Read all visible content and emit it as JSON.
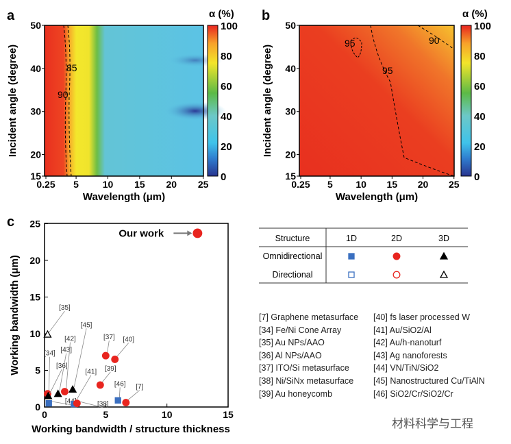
{
  "chart_data": [
    {
      "panel": "a",
      "type": "heatmap",
      "xlabel": "Wavelength (μm)",
      "ylabel": "Incident angle (degree)",
      "xticks": [
        "0.25",
        "5",
        "10",
        "15",
        "20",
        "25"
      ],
      "yticks": [
        "15",
        "20",
        "30",
        "40",
        "50"
      ],
      "xlim": [
        0.25,
        25
      ],
      "ylim": [
        15,
        50
      ],
      "colorbar": {
        "label": "α (%)",
        "ticks": [
          "0",
          "20",
          "40",
          "60",
          "80",
          "100"
        ],
        "range": [
          0,
          100
        ]
      },
      "contours": [
        "85",
        "90"
      ]
    },
    {
      "panel": "b",
      "type": "heatmap",
      "xlabel": "Wavelength (μm)",
      "ylabel": "Incident angle (degree)",
      "xticks": [
        "0.25",
        "5",
        "10",
        "15",
        "20",
        "25"
      ],
      "yticks": [
        "15",
        "20",
        "30",
        "40",
        "50"
      ],
      "xlim": [
        0.25,
        25
      ],
      "ylim": [
        15,
        50
      ],
      "colorbar": {
        "label": "α (%)",
        "ticks": [
          "0",
          "20",
          "40",
          "60",
          "80",
          "100"
        ],
        "range": [
          0,
          100
        ]
      },
      "contours": [
        "95",
        "95",
        "90"
      ]
    },
    {
      "panel": "c",
      "type": "scatter",
      "xlabel": "Working bandwidth / structure thickness",
      "ylabel": "Working bandwidth (μm)",
      "xlim": [
        0,
        15
      ],
      "ylim": [
        0,
        25
      ],
      "xticks": [
        "0",
        "5",
        "10",
        "15"
      ],
      "yticks": [
        "0",
        "5",
        "10",
        "15",
        "20",
        "25"
      ],
      "points": [
        {
          "label": "[35]",
          "x": 0.25,
          "y": 9.9,
          "dim": "3D",
          "mode": "Directional"
        },
        {
          "label": "[34]",
          "x": 0.25,
          "y": 1.8,
          "dim": "2D",
          "mode": "Omnidirectional"
        },
        {
          "label": "[36]",
          "x": 0.3,
          "y": 1.5,
          "dim": "3D",
          "mode": "Omnidirectional"
        },
        {
          "label": "[43]",
          "x": 1.1,
          "y": 1.8,
          "dim": "3D",
          "mode": "Omnidirectional"
        },
        {
          "label": "[42]",
          "x": 1.65,
          "y": 2.1,
          "dim": "2D",
          "mode": "Omnidirectional"
        },
        {
          "label": "[45]",
          "x": 2.3,
          "y": 2.4,
          "dim": "3D",
          "mode": "Omnidirectional"
        },
        {
          "label": "[44]",
          "x": 0.35,
          "y": 0.5,
          "dim": "1D",
          "mode": "Omnidirectional"
        },
        {
          "label": "[41]",
          "x": 2.4,
          "y": 0.4,
          "dim": "1D",
          "mode": "Omnidirectional"
        },
        {
          "label": "[38]",
          "x": 2.65,
          "y": 0.5,
          "dim": "2D",
          "mode": "Omnidirectional"
        },
        {
          "label": "[39]",
          "x": 4.55,
          "y": 3.0,
          "dim": "2D",
          "mode": "Omnidirectional"
        },
        {
          "label": "[37]",
          "x": 5.0,
          "y": 7.0,
          "dim": "2D",
          "mode": "Omnidirectional"
        },
        {
          "label": "[40]",
          "x": 5.75,
          "y": 6.5,
          "dim": "2D",
          "mode": "Omnidirectional"
        },
        {
          "label": "[46]",
          "x": 6.0,
          "y": 0.9,
          "dim": "1D",
          "mode": "Omnidirectional"
        },
        {
          "label": "[7]",
          "x": 6.65,
          "y": 0.6,
          "dim": "2D",
          "mode": "Omnidirectional"
        },
        {
          "label": "Our work",
          "x": 12.5,
          "y": 23.7,
          "dim": "2D",
          "mode": "Omnidirectional"
        }
      ]
    }
  ],
  "panels": {
    "a": "a",
    "b": "b",
    "c": "c"
  },
  "legend_table": {
    "headers": [
      "Structure",
      "1D",
      "2D",
      "3D"
    ],
    "rows": [
      "Omnidirectional",
      "Directional"
    ]
  },
  "refs_left": [
    "[7] Graphene metasurface",
    "[34] Fe/Ni Cone Array",
    "[35] Au NPs/AAO",
    "[36] Al NPs/AAO",
    "[37] ITO/Si metasurface",
    "[38] Ni/SiNx metasurface",
    "[39] Au honeycomb"
  ],
  "refs_right": [
    "[40] fs laser processed W",
    "[41] Au/SiO2/Al",
    "[42] Au/h-nanoturf",
    "[43] Ag nanoforests",
    "[44] VN/TiN/SiO2",
    "[45] Nanostructured Cu/TiAlN",
    "[46] SiO2/Cr/SiO2/Cr"
  ],
  "watermark": "材料科学与工程",
  "colors": {
    "red": "#e8251f",
    "blue": "#3a6fc0",
    "black": "#000000"
  }
}
